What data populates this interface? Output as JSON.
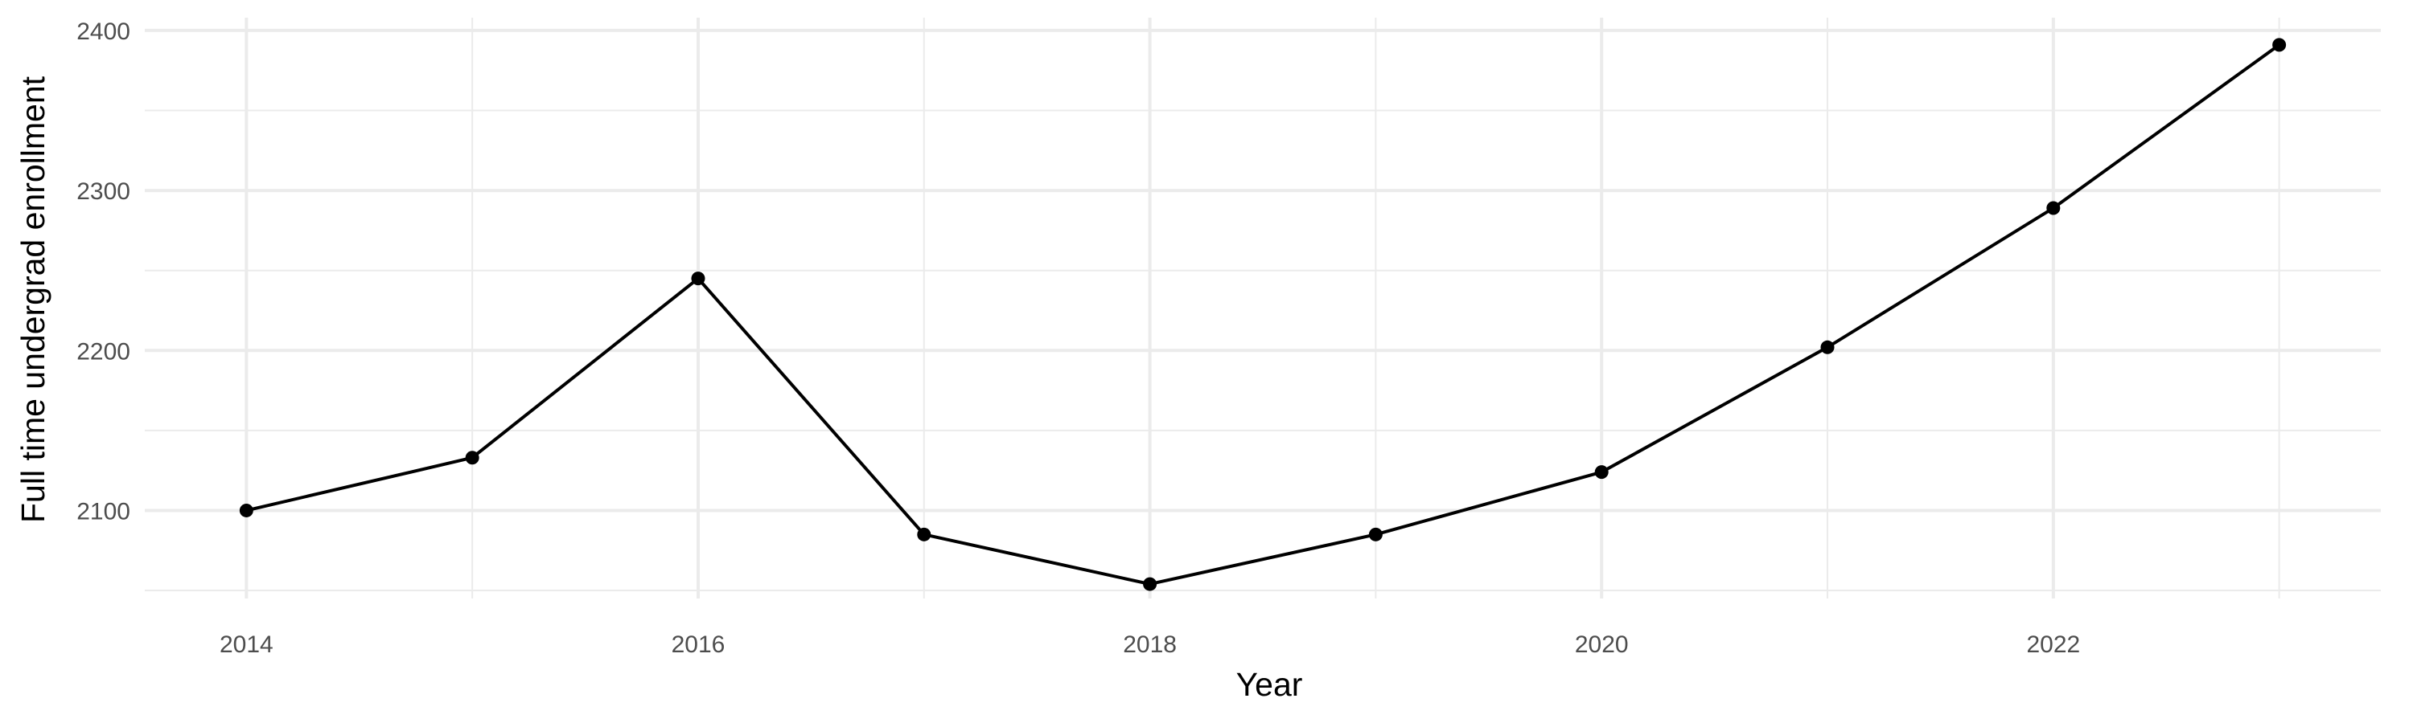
{
  "chart_data": {
    "type": "line",
    "title": "",
    "xlabel": "Year",
    "ylabel": "Full time undergrad enrollment",
    "x": [
      2014,
      2015,
      2016,
      2017,
      2018,
      2019,
      2020,
      2021,
      2022,
      2023
    ],
    "series": [
      {
        "values": [
          2100,
          2133,
          2245,
          2085,
          2054,
          2085,
          2124,
          2202,
          2289,
          2391
        ]
      }
    ],
    "xlim": [
      2013.55,
      2023.45
    ],
    "ylim": [
      2045,
      2408
    ],
    "x_ticks": [
      2014,
      2016,
      2018,
      2020,
      2022
    ],
    "x_tick_labels": [
      "2014",
      "2016",
      "2018",
      "2020",
      "2022"
    ],
    "y_ticks": [
      2100,
      2200,
      2300,
      2400
    ],
    "y_tick_labels": [
      "2100",
      "2200",
      "2300",
      "2400"
    ],
    "grid": true,
    "line_color": "#000000",
    "grid_color": "#ebebeb",
    "background": "#ffffff"
  }
}
